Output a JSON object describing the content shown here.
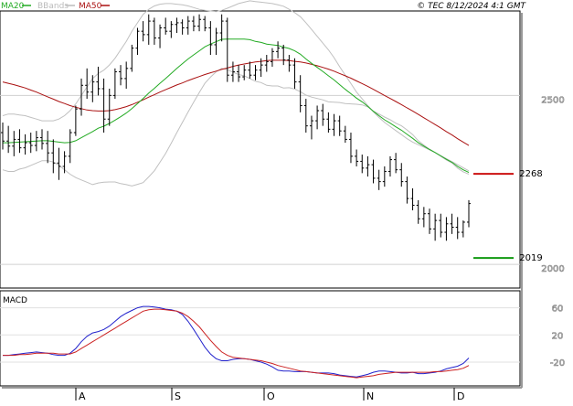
{
  "header": {
    "legend": [
      {
        "label": "MA20",
        "color": "#22aa22"
      },
      {
        "label": "BBands",
        "color": "#bbbbbb"
      },
      {
        "label": "MA50",
        "color": "#aa1111"
      }
    ],
    "copyright": "© TEC 8/12/2024 4:1 GMT"
  },
  "chart_data": [
    {
      "type": "ohlc",
      "title": "",
      "x_ticks": [
        "A",
        "S",
        "O",
        "N",
        "D"
      ],
      "ylim": [
        1930,
        2750
      ],
      "y_ticks": [
        2000,
        2500
      ],
      "grid": true,
      "legend_position": "top-left",
      "levels": [
        {
          "value": 2268,
          "label": "2268",
          "color": "#cc1111"
        },
        {
          "value": 2019,
          "label": "2019",
          "color": "#119911"
        }
      ],
      "bars": [
        [
          2390,
          2420,
          2340,
          2365
        ],
        [
          2365,
          2410,
          2330,
          2350
        ],
        [
          2350,
          2395,
          2320,
          2370
        ],
        [
          2370,
          2400,
          2330,
          2345
        ],
        [
          2345,
          2385,
          2325,
          2360
        ],
        [
          2360,
          2390,
          2330,
          2352
        ],
        [
          2352,
          2395,
          2335,
          2375
        ],
        [
          2375,
          2400,
          2340,
          2358
        ],
        [
          2358,
          2395,
          2300,
          2330
        ],
        [
          2330,
          2370,
          2270,
          2300
        ],
        [
          2300,
          2345,
          2250,
          2290
        ],
        [
          2290,
          2335,
          2270,
          2320
        ],
        [
          2320,
          2400,
          2300,
          2390
        ],
        [
          2390,
          2470,
          2380,
          2460
        ],
        [
          2460,
          2550,
          2440,
          2530
        ],
        [
          2530,
          2580,
          2490,
          2510
        ],
        [
          2510,
          2560,
          2480,
          2540
        ],
        [
          2540,
          2585,
          2500,
          2520
        ],
        [
          2520,
          2550,
          2390,
          2430
        ],
        [
          2430,
          2520,
          2410,
          2500
        ],
        [
          2500,
          2580,
          2490,
          2570
        ],
        [
          2570,
          2590,
          2530,
          2550
        ],
        [
          2550,
          2600,
          2520,
          2580
        ],
        [
          2580,
          2650,
          2570,
          2640
        ],
        [
          2640,
          2700,
          2620,
          2690
        ],
        [
          2690,
          2720,
          2660,
          2680
        ],
        [
          2680,
          2740,
          2650,
          2720
        ],
        [
          2720,
          2730,
          2650,
          2670
        ],
        [
          2670,
          2710,
          2640,
          2700
        ],
        [
          2700,
          2730,
          2680,
          2690
        ],
        [
          2690,
          2720,
          2670,
          2710
        ],
        [
          2710,
          2730,
          2685,
          2715
        ],
        [
          2715,
          2725,
          2680,
          2700
        ],
        [
          2700,
          2735,
          2680,
          2720
        ],
        [
          2720,
          2735,
          2690,
          2705
        ],
        [
          2705,
          2740,
          2690,
          2725
        ],
        [
          2725,
          2735,
          2690,
          2700
        ],
        [
          2700,
          2720,
          2620,
          2650
        ],
        [
          2650,
          2700,
          2620,
          2685
        ],
        [
          2685,
          2740,
          2660,
          2720
        ],
        [
          2720,
          2730,
          2540,
          2560
        ],
        [
          2560,
          2600,
          2540,
          2570
        ],
        [
          2570,
          2590,
          2540,
          2555
        ],
        [
          2555,
          2590,
          2545,
          2575
        ],
        [
          2575,
          2600,
          2550,
          2560
        ],
        [
          2560,
          2590,
          2545,
          2575
        ],
        [
          2575,
          2610,
          2555,
          2590
        ],
        [
          2590,
          2620,
          2570,
          2600
        ],
        [
          2600,
          2640,
          2585,
          2630
        ],
        [
          2630,
          2660,
          2610,
          2640
        ],
        [
          2640,
          2650,
          2590,
          2605
        ],
        [
          2605,
          2620,
          2570,
          2590
        ],
        [
          2590,
          2610,
          2520,
          2540
        ],
        [
          2540,
          2560,
          2450,
          2470
        ],
        [
          2470,
          2490,
          2390,
          2410
        ],
        [
          2410,
          2440,
          2370,
          2425
        ],
        [
          2425,
          2470,
          2400,
          2455
        ],
        [
          2455,
          2475,
          2410,
          2430
        ],
        [
          2430,
          2450,
          2390,
          2400
        ],
        [
          2400,
          2445,
          2380,
          2425
        ],
        [
          2425,
          2440,
          2380,
          2395
        ],
        [
          2395,
          2410,
          2360,
          2370
        ],
        [
          2370,
          2390,
          2300,
          2320
        ],
        [
          2320,
          2340,
          2290,
          2305
        ],
        [
          2305,
          2325,
          2270,
          2285
        ],
        [
          2285,
          2320,
          2260,
          2295
        ],
        [
          2295,
          2310,
          2240,
          2255
        ],
        [
          2255,
          2280,
          2220,
          2245
        ],
        [
          2245,
          2290,
          2230,
          2275
        ],
        [
          2275,
          2320,
          2260,
          2310
        ],
        [
          2310,
          2330,
          2270,
          2280
        ],
        [
          2280,
          2300,
          2230,
          2245
        ],
        [
          2245,
          2260,
          2180,
          2195
        ],
        [
          2195,
          2225,
          2160,
          2175
        ],
        [
          2175,
          2190,
          2120,
          2135
        ],
        [
          2135,
          2170,
          2110,
          2150
        ],
        [
          2150,
          2165,
          2090,
          2105
        ],
        [
          2105,
          2150,
          2070,
          2130
        ],
        [
          2130,
          2150,
          2080,
          2095
        ],
        [
          2095,
          2140,
          2070,
          2120
        ],
        [
          2120,
          2150,
          2090,
          2110
        ],
        [
          2110,
          2140,
          2075,
          2095
        ],
        [
          2095,
          2130,
          2080,
          2125
        ],
        [
          2125,
          2190,
          2110,
          2180
        ]
      ],
      "ma20": [
        2360,
        2360,
        2361,
        2362,
        2363,
        2364,
        2365,
        2366,
        2366,
        2364,
        2362,
        2360,
        2361,
        2366,
        2375,
        2384,
        2393,
        2403,
        2409,
        2417,
        2427,
        2437,
        2448,
        2461,
        2476,
        2491,
        2507,
        2521,
        2536,
        2550,
        2565,
        2580,
        2594,
        2608,
        2620,
        2632,
        2644,
        2652,
        2659,
        2666,
        2667,
        2667,
        2667,
        2667,
        2665,
        2660,
        2657,
        2652,
        2650,
        2648,
        2643,
        2639,
        2632,
        2622,
        2608,
        2595,
        2583,
        2571,
        2558,
        2546,
        2532,
        2518,
        2505,
        2492,
        2481,
        2468,
        2453,
        2440,
        2428,
        2418,
        2407,
        2397,
        2385,
        2373,
        2360,
        2350,
        2340,
        2331,
        2321,
        2311,
        2302,
        2290,
        2280,
        2272
      ],
      "bb_upper": [
        2440,
        2445,
        2445,
        2442,
        2440,
        2435,
        2430,
        2425,
        2425,
        2425,
        2430,
        2440,
        2455,
        2475,
        2500,
        2525,
        2550,
        2565,
        2575,
        2590,
        2610,
        2635,
        2660,
        2690,
        2715,
        2740,
        2755,
        2765,
        2770,
        2772,
        2772,
        2770,
        2768,
        2765,
        2760,
        2755,
        2752,
        2750,
        2748,
        2752,
        2758,
        2765,
        2772,
        2776,
        2780,
        2778,
        2776,
        2774,
        2772,
        2768,
        2764,
        2755,
        2745,
        2733,
        2715,
        2695,
        2675,
        2655,
        2635,
        2612,
        2585,
        2560,
        2535,
        2510,
        2490,
        2470,
        2452,
        2435,
        2420,
        2408,
        2396,
        2384,
        2372,
        2362,
        2354,
        2347,
        2339,
        2331,
        2322,
        2313,
        2304,
        2295,
        2286,
        2277
      ],
      "bb_lower": [
        2280,
        2275,
        2275,
        2282,
        2286,
        2293,
        2300,
        2307,
        2307,
        2303,
        2294,
        2280,
        2267,
        2257,
        2250,
        2243,
        2236,
        2241,
        2243,
        2244,
        2244,
        2239,
        2236,
        2232,
        2237,
        2242,
        2259,
        2277,
        2302,
        2328,
        2358,
        2390,
        2420,
        2451,
        2480,
        2509,
        2536,
        2554,
        2570,
        2580,
        2576,
        2569,
        2562,
        2558,
        2550,
        2542,
        2538,
        2530,
        2528,
        2528,
        2522,
        2523,
        2519,
        2511,
        2501,
        2495,
        2491,
        2487,
        2481,
        2480,
        2479,
        2476,
        2475,
        2474,
        2472,
        2466,
        2454,
        2445,
        2436,
        2428,
        2418,
        2410,
        2398,
        2384,
        2366,
        2353,
        2341,
        2331,
        2320,
        2309,
        2300,
        2285,
        2274,
        2267
      ],
      "ma50": [
        2540,
        2536,
        2532,
        2527,
        2522,
        2516,
        2510,
        2503,
        2496,
        2489,
        2482,
        2476,
        2470,
        2465,
        2461,
        2457,
        2455,
        2454,
        2454,
        2455,
        2458,
        2462,
        2467,
        2473,
        2480,
        2487,
        2495,
        2502,
        2510,
        2517,
        2524,
        2531,
        2537,
        2544,
        2550,
        2556,
        2562,
        2567,
        2572,
        2577,
        2581,
        2586,
        2590,
        2593,
        2596,
        2599,
        2601,
        2603,
        2604,
        2604,
        2604,
        2603,
        2601,
        2599,
        2596,
        2592,
        2588,
        2583,
        2578,
        2572,
        2565,
        2558,
        2551,
        2543,
        2535,
        2527,
        2518,
        2509,
        2500,
        2491,
        2482,
        2473,
        2463,
        2454,
        2444,
        2434,
        2424,
        2414,
        2404,
        2393,
        2383,
        2372,
        2362,
        2352
      ]
    },
    {
      "type": "line",
      "title": "MACD",
      "x_ticks": [
        "A",
        "S",
        "O",
        "N",
        "D"
      ],
      "ylim": [
        -55,
        85
      ],
      "y_ticks": [
        60,
        20,
        -20
      ],
      "grid": true,
      "series": [
        {
          "name": "",
          "color": "#2222cc",
          "values": [
            -10,
            -10,
            -9,
            -8,
            -7,
            -6,
            -5,
            -6,
            -7,
            -9,
            -10,
            -10,
            -7,
            0,
            10,
            18,
            23,
            25,
            28,
            33,
            40,
            47,
            52,
            56,
            60,
            62,
            62,
            61,
            60,
            58,
            57,
            55,
            50,
            40,
            28,
            15,
            2,
            -8,
            -15,
            -18,
            -18,
            -16,
            -15,
            -15,
            -16,
            -18,
            -20,
            -23,
            -27,
            -32,
            -33,
            -33,
            -34,
            -34,
            -34,
            -35,
            -36,
            -36,
            -36,
            -37,
            -39,
            -40,
            -41,
            -42,
            -40,
            -38,
            -35,
            -33,
            -33,
            -34,
            -35,
            -36,
            -36,
            -35,
            -37,
            -37,
            -36,
            -35,
            -33,
            -30,
            -28,
            -26,
            -22,
            -14
          ]
        },
        {
          "name": "",
          "color": "#cc2222",
          "values": [
            -10,
            -10,
            -10,
            -9,
            -9,
            -8,
            -7,
            -7,
            -7,
            -7,
            -8,
            -8,
            -8,
            -5,
            0,
            5,
            10,
            15,
            20,
            25,
            30,
            35,
            40,
            45,
            50,
            55,
            57,
            58,
            58,
            57,
            56,
            55,
            52,
            47,
            40,
            32,
            22,
            12,
            3,
            -5,
            -10,
            -13,
            -14,
            -15,
            -16,
            -17,
            -18,
            -20,
            -22,
            -25,
            -27,
            -29,
            -31,
            -33,
            -34,
            -35,
            -36,
            -37,
            -38,
            -39,
            -40,
            -41,
            -42,
            -43,
            -42,
            -41,
            -40,
            -38,
            -37,
            -36,
            -35,
            -35,
            -35,
            -35,
            -35,
            -35,
            -35,
            -34,
            -34,
            -33,
            -32,
            -31,
            -29,
            -25
          ]
        }
      ]
    }
  ]
}
